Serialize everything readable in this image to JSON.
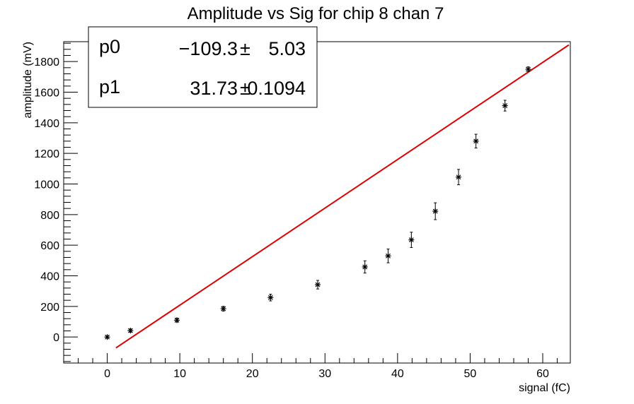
{
  "chart_data": {
    "type": "scatter",
    "title": "Amplitude vs Sig for chip 8 chan 7",
    "xlabel": "signal (fC)",
    "ylabel": "amplitude (mV)",
    "xlim": [
      -6,
      63.8
    ],
    "ylim": [
      -170,
      1930
    ],
    "x_ticks": [
      0,
      10,
      20,
      30,
      40,
      50,
      60
    ],
    "y_ticks": [
      0,
      200,
      400,
      600,
      800,
      1000,
      1200,
      1400,
      1600,
      1800
    ],
    "grid": false,
    "series": [
      {
        "marker": "asterisk",
        "color": "#000000",
        "points": [
          {
            "x": 0.0,
            "y": 0,
            "err": 8
          },
          {
            "x": 3.2,
            "y": 42,
            "err": 10
          },
          {
            "x": 9.6,
            "y": 110,
            "err": 12
          },
          {
            "x": 16.0,
            "y": 185,
            "err": 15
          },
          {
            "x": 22.5,
            "y": 258,
            "err": 22
          },
          {
            "x": 29.0,
            "y": 342,
            "err": 28
          },
          {
            "x": 35.5,
            "y": 458,
            "err": 40
          },
          {
            "x": 38.7,
            "y": 530,
            "err": 45
          },
          {
            "x": 41.9,
            "y": 635,
            "err": 50
          },
          {
            "x": 45.2,
            "y": 822,
            "err": 55
          },
          {
            "x": 48.4,
            "y": 1045,
            "err": 50
          },
          {
            "x": 50.8,
            "y": 1280,
            "err": 45
          },
          {
            "x": 54.8,
            "y": 1512,
            "err": 35
          },
          {
            "x": 58.0,
            "y": 1750,
            "err": 15
          }
        ]
      }
    ],
    "fit": {
      "color": "#dd0000",
      "x_range": [
        1.2,
        63.6
      ],
      "p0": -109.3,
      "p1": 31.73
    },
    "stats_box": {
      "placement": "top-left",
      "rows": [
        {
          "name": "p0",
          "value": "−109.3",
          "pm": "±",
          "error": "5.03"
        },
        {
          "name": "p1",
          "value": "31.73",
          "pm": "±",
          "error": "0.1094"
        }
      ]
    }
  }
}
